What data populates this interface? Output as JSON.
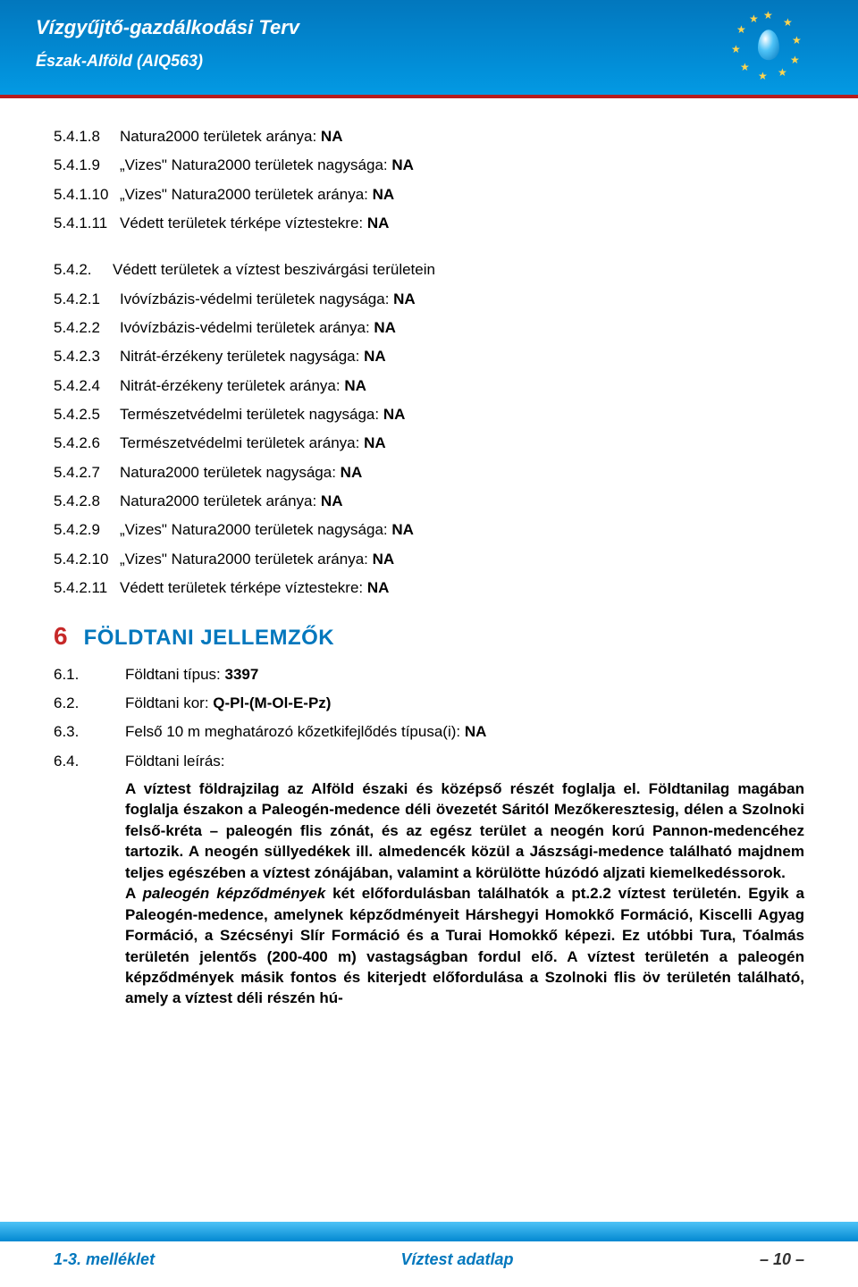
{
  "header": {
    "title": "Vízgyűjtő-gazdálkodási Terv",
    "subtitle": "Észak-Alföld (AIQ563)",
    "bg_color": "#0288d1",
    "divider_color": "#b71c1c",
    "text_color": "#ffffff"
  },
  "group1": [
    {
      "num": "5.4.1.8",
      "label": "Natura2000 területek aránya:",
      "val": "NA"
    },
    {
      "num": "5.4.1.9",
      "label": "„Vizes\" Natura2000 területek nagysága:",
      "val": "NA"
    },
    {
      "num": "5.4.1.10",
      "label": "„Vizes\" Natura2000 területek aránya:",
      "val": "NA"
    },
    {
      "num": "5.4.1.11",
      "label": "Védett területek térképe víztestekre:",
      "val": "NA"
    }
  ],
  "group2_title": {
    "num": "5.4.2.",
    "label": "Védett területek a víztest beszivárgási területein"
  },
  "group2": [
    {
      "num": "5.4.2.1",
      "label": "Ivóvízbázis-védelmi területek nagysága:",
      "val": "NA"
    },
    {
      "num": "5.4.2.2",
      "label": "Ivóvízbázis-védelmi területek aránya:",
      "val": "NA"
    },
    {
      "num": "5.4.2.3",
      "label": "Nitrát-érzékeny területek nagysága:",
      "val": "NA"
    },
    {
      "num": "5.4.2.4",
      "label": "Nitrát-érzékeny területek aránya:",
      "val": "NA"
    },
    {
      "num": "5.4.2.5",
      "label": "Természetvédelmi területek nagysága:",
      "val": "NA"
    },
    {
      "num": "5.4.2.6",
      "label": "Természetvédelmi területek aránya:",
      "val": "NA"
    },
    {
      "num": "5.4.2.7",
      "label": "Natura2000 területek nagysága:",
      "val": "NA"
    },
    {
      "num": "5.4.2.8",
      "label": "Natura2000 területek aránya:",
      "val": "NA"
    },
    {
      "num": "5.4.2.9",
      "label": "„Vizes\" Natura2000 területek nagysága:",
      "val": "NA"
    },
    {
      "num": "5.4.2.10",
      "label": "„Vizes\" Natura2000 területek aránya:",
      "val": "NA"
    },
    {
      "num": "5.4.2.11",
      "label": "Védett területek térképe víztestekre:",
      "val": "NA"
    }
  ],
  "section6": {
    "num": "6",
    "title": "FÖLDTANI JELLEMZŐK",
    "num_color": "#c62828",
    "title_color": "#0277bd"
  },
  "section6_items": [
    {
      "num": "6.1.",
      "label": "Földtani típus:",
      "val": "3397"
    },
    {
      "num": "6.2.",
      "label": "Földtani kor:",
      "val": "Q-Pl-(M-Ol-E-Pz)"
    },
    {
      "num": "6.3.",
      "label": "Felső 10 m meghatározó kőzetkifejlődés típusa(i):",
      "val": "NA"
    },
    {
      "num": "6.4.",
      "label": "Földtani leírás:",
      "val": ""
    }
  ],
  "para": {
    "p1": "A víztest földrajzilag az Alföld északi és középső részét foglalja el. Földtanilag magában foglalja északon a Paleogén-medence déli övezetét Sáritól Mezőkeresztesig, délen a Szolnoki felső-kréta – paleogén flis zónát, és az egész terület a neogén korú Pannon-medencéhez tartozik. A neogén süllyedékek ill. almedencék közül a Jászsági-medence található majdnem teljes egészében a víztest zónájában, valamint a körülötte húzódó aljzati kiemelkedéssorok.",
    "p2a": "A ",
    "p2b_italic": "paleogén képződmények",
    "p2c": " két előfordulásban találhatók a pt.2.2 víztest területén. Egyik a Paleogén-medence, amelynek képződményeit Hárshegyi Homokkő Formáció, Kiscelli Agyag Formáció, a Szécsényi Slír Formáció és a Turai Homokkő képezi. Ez utóbbi Tura, Tóalmás területén jelentős (200-400 m) vastagságban fordul elő. A víztest területén a paleogén képződmények másik fontos és kiterjedt előfordulása a Szolnoki flis öv területén található, amely a víztest déli részén hú-"
  },
  "footer": {
    "left": "1-3. melléklet",
    "center": "Víztest adatlap",
    "right": "– 10 –",
    "bar_color": "#0288d1",
    "text_color": "#0277bd"
  }
}
